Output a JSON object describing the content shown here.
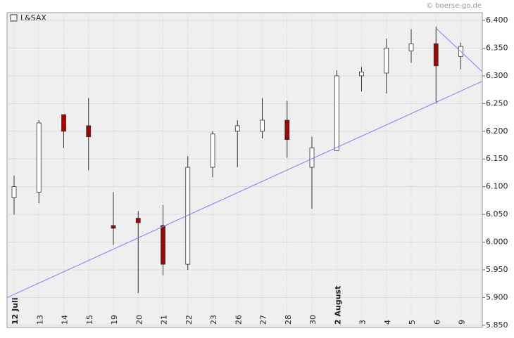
{
  "chart_data": {
    "type": "candlestick",
    "legend": "L&SAX",
    "watermark": "© boerse-go.de",
    "categories": [
      "12 Juli",
      "13",
      "14",
      "15",
      "19",
      "20",
      "21",
      "22",
      "23",
      "26",
      "27",
      "28",
      "30",
      "2 August",
      "3",
      "4",
      "5",
      "6",
      "9"
    ],
    "open": [
      6.08,
      6.09,
      6.23,
      6.21,
      6.03,
      6.043,
      6.03,
      5.96,
      6.135,
      6.2,
      6.2,
      6.22,
      6.135,
      6.165,
      6.3,
      6.305,
      6.345,
      6.358,
      6.335
    ],
    "high": [
      6.12,
      6.22,
      6.23,
      6.26,
      6.09,
      6.056,
      6.067,
      6.155,
      6.2,
      6.22,
      6.26,
      6.255,
      6.19,
      6.31,
      6.316,
      6.367,
      6.384,
      6.389,
      6.36
    ],
    "low": [
      6.05,
      6.07,
      6.17,
      6.13,
      5.995,
      5.908,
      5.94,
      5.95,
      6.117,
      6.135,
      6.187,
      6.152,
      6.06,
      6.165,
      6.272,
      6.268,
      6.324,
      6.25,
      6.312
    ],
    "close": [
      6.1,
      6.215,
      6.2,
      6.19,
      6.025,
      6.035,
      5.96,
      6.135,
      6.195,
      6.21,
      6.22,
      6.185,
      6.17,
      6.3,
      6.307,
      6.35,
      6.358,
      6.318,
      6.353
    ],
    "up_color": "#ffffff",
    "down_color": "#aa0000",
    "trendlines": [
      {
        "x": [
          -0.28,
          18.85
        ],
        "y": [
          5.9,
          6.29
        ],
        "color": "#7f7fff"
      },
      {
        "x": [
          17,
          18.85
        ],
        "y": [
          6.386,
          6.308
        ],
        "color": "#7f7fff"
      }
    ],
    "ylim": [
      5.846,
      6.414
    ],
    "yticks": [
      {
        "value": 5.85,
        "label": "5.850"
      },
      {
        "value": 5.9,
        "label": "5.900"
      },
      {
        "value": 5.95,
        "label": "5.950"
      },
      {
        "value": 6.0,
        "label": "6.000"
      },
      {
        "value": 6.05,
        "label": "6.050"
      },
      {
        "value": 6.1,
        "label": "6.100"
      },
      {
        "value": 6.15,
        "label": "6.150"
      },
      {
        "value": 6.2,
        "label": "6.200"
      },
      {
        "value": 6.25,
        "label": "6.250"
      },
      {
        "value": 6.3,
        "label": "6.300"
      },
      {
        "value": 6.35,
        "label": "6.350"
      },
      {
        "value": 6.4,
        "label": "6.400"
      }
    ],
    "grid": true
  }
}
